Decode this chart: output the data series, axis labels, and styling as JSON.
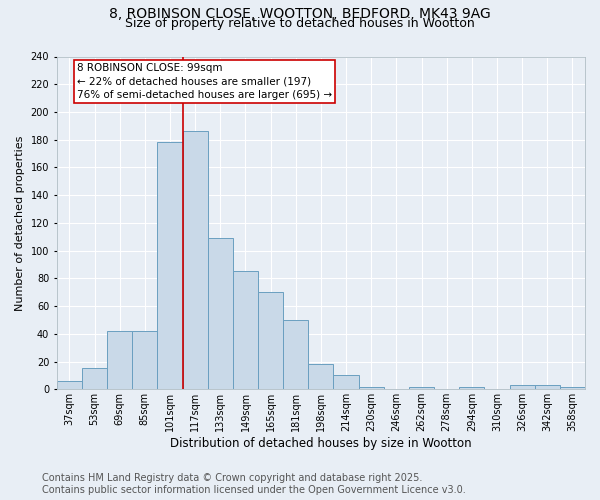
{
  "title_line1": "8, ROBINSON CLOSE, WOOTTON, BEDFORD, MK43 9AG",
  "title_line2": "Size of property relative to detached houses in Wootton",
  "xlabel": "Distribution of detached houses by size in Wootton",
  "ylabel": "Number of detached properties",
  "bar_labels": [
    "37sqm",
    "53sqm",
    "69sqm",
    "85sqm",
    "101sqm",
    "117sqm",
    "133sqm",
    "149sqm",
    "165sqm",
    "181sqm",
    "198sqm",
    "214sqm",
    "230sqm",
    "246sqm",
    "262sqm",
    "278sqm",
    "294sqm",
    "310sqm",
    "326sqm",
    "342sqm",
    "358sqm"
  ],
  "bar_values": [
    6,
    15,
    42,
    42,
    178,
    186,
    109,
    85,
    70,
    50,
    18,
    10,
    2,
    0,
    2,
    0,
    2,
    0,
    3,
    3,
    2
  ],
  "bar_color": "#c9d9e8",
  "bar_edge_color": "#6a9fc0",
  "vline_x": 4.5,
  "vline_color": "#cc0000",
  "annotation_text": "8 ROBINSON CLOSE: 99sqm\n← 22% of detached houses are smaller (197)\n76% of semi-detached houses are larger (695) →",
  "annotation_box_color": "#ffffff",
  "annotation_box_edge": "#cc0000",
  "ylim": [
    0,
    240
  ],
  "yticks": [
    0,
    20,
    40,
    60,
    80,
    100,
    120,
    140,
    160,
    180,
    200,
    220,
    240
  ],
  "background_color": "#e8eef5",
  "footer_text": "Contains HM Land Registry data © Crown copyright and database right 2025.\nContains public sector information licensed under the Open Government Licence v3.0.",
  "title_fontsize": 10,
  "subtitle_fontsize": 9,
  "annotation_fontsize": 7.5,
  "footer_fontsize": 7,
  "tick_fontsize": 7,
  "ylabel_fontsize": 8,
  "xlabel_fontsize": 8.5
}
